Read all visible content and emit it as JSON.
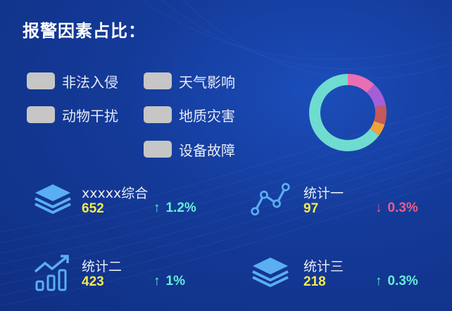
{
  "panel": {
    "title": "报警因素占比："
  },
  "legend": [
    {
      "label": "非法入侵"
    },
    {
      "label": "天气影响"
    },
    {
      "label": "动物干扰"
    },
    {
      "label": "地质灾害"
    },
    {
      "label": "设备故障"
    }
  ],
  "donut": {
    "colors": {
      "teal": "#6fdccf",
      "pink": "#e96fb2",
      "purple": "#a45fd6",
      "red": "#c45a5a",
      "orange": "#f0a23a"
    },
    "segments": [
      {
        "color": "#e96fb2",
        "fraction": 0.12
      },
      {
        "color": "#a45fd6",
        "fraction": 0.1
      },
      {
        "color": "#c45a5a",
        "fraction": 0.08
      },
      {
        "color": "#f0a23a",
        "fraction": 0.05
      },
      {
        "color": "#6fdccf",
        "fraction": 0.65
      }
    ]
  },
  "stats": [
    {
      "name": "xxxxx综合",
      "value": "652",
      "change": "1.2%",
      "direction": "up",
      "arrow": "↑",
      "icon": "layers-icon"
    },
    {
      "name": "统计一",
      "value": "97",
      "change": "0.3%",
      "direction": "down",
      "arrow": "↓",
      "icon": "line-nodes-icon"
    },
    {
      "name": "统计二",
      "value": "423",
      "change": "1%",
      "direction": "up",
      "arrow": "↑",
      "icon": "bar-trend-icon"
    },
    {
      "name": "统计三",
      "value": "218",
      "change": "0.3%",
      "direction": "up",
      "arrow": "↑",
      "icon": "layers-icon"
    }
  ],
  "colors": {
    "value_yellow": "#f6ea4f",
    "up_teal": "#63efd5",
    "down_pink": "#ef5a86",
    "icon_blue": "#4fa3f0",
    "swatch_gray": "#c6c6c6"
  }
}
